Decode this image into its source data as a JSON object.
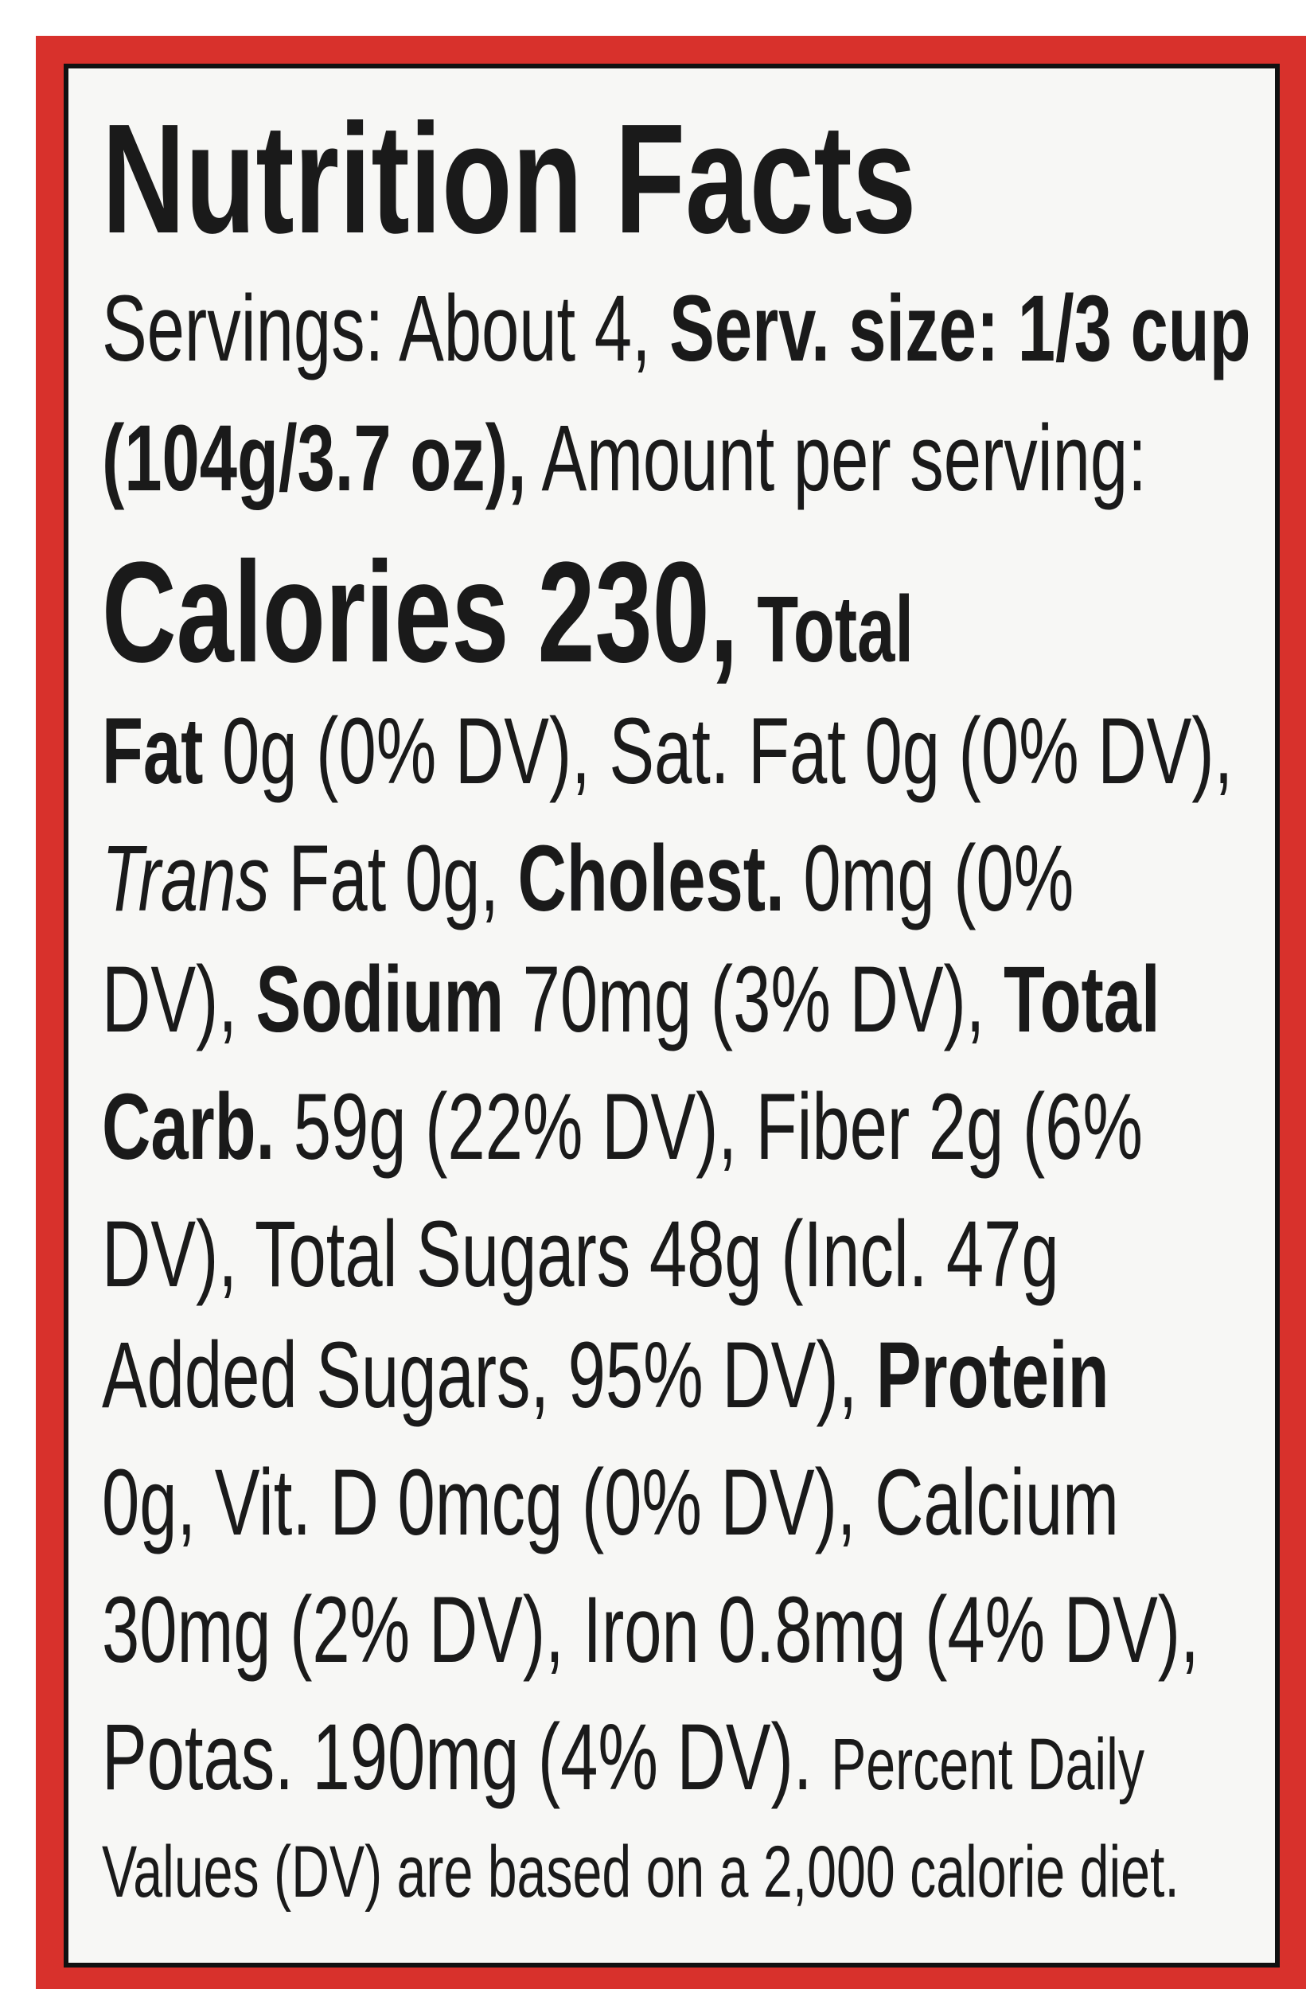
{
  "title": "Nutrition Facts",
  "lines": [
    [
      "Servings: About 4, ",
      "Serv. size: 1/3 cup"
    ],
    [
      "(104g/3.7 oz),",
      " Amount per serving:"
    ],
    [
      "Calories 230,",
      " Total"
    ],
    [
      "Fat",
      " 0g (0% DV), Sat. Fat 0g (0% DV),"
    ],
    [
      "Trans",
      " Fat 0g, ",
      "Cholest.",
      " 0mg (0%"
    ],
    [
      "DV), ",
      "Sodium",
      " 70mg (3% DV), ",
      "Total"
    ],
    [
      "Carb.",
      " 59g (22% DV), Fiber 2g (6%"
    ],
    [
      "DV), Total Sugars 48g (Incl. 47g"
    ],
    [
      "Added Sugars, 95% DV), ",
      "Protein"
    ],
    [
      "0g, Vit. D 0mcg (0% DV), Calcium"
    ],
    [
      "30mg (2% DV), Iron 0.8mg (4% DV),"
    ],
    [
      "Potas. 190mg (4% DV). ",
      "Percent Daily"
    ],
    [
      "Values (DV) are based on a 2,000 calorie diet."
    ]
  ]
}
